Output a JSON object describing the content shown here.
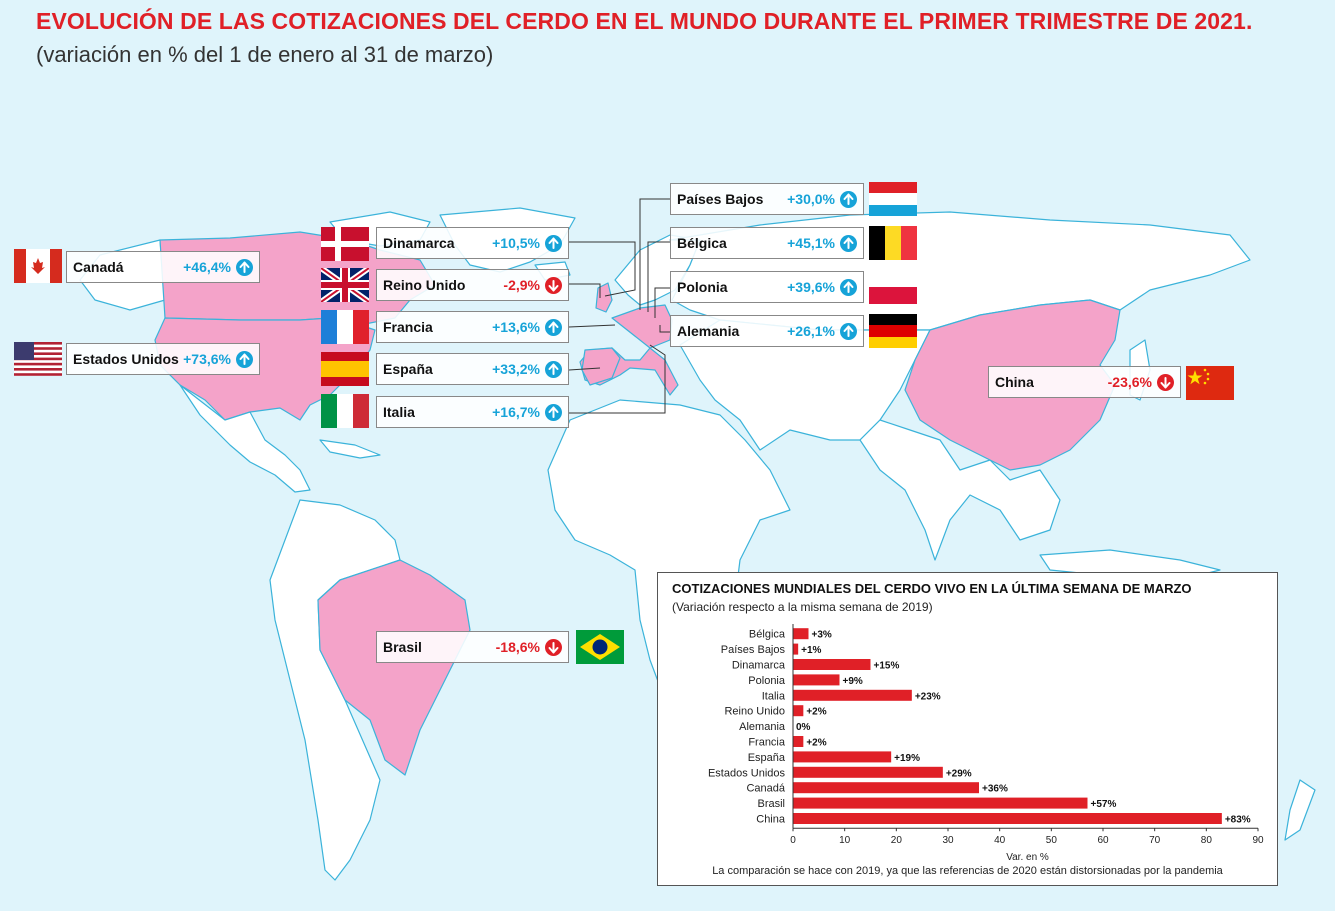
{
  "title": "EVOLUCIÓN DE LAS COTIZACIONES DEL CERDO EN EL MUNDO DURANTE EL PRIMER TRIMESTRE DE 2021.",
  "subtitle": "(variación en % del  1 de enero al 31 de marzo)",
  "colors": {
    "up": "#16a3d8",
    "down": "#e02027",
    "highlight": "#f4a3c9",
    "land": "#ffffff",
    "sea": "#dff4fb",
    "bar": "#e02027"
  },
  "labels": {
    "canada": {
      "name": "Canadá",
      "value": "+46,4%",
      "trend": "up"
    },
    "usa": {
      "name": "Estados Unidos",
      "value": "+73,6%",
      "trend": "up"
    },
    "dinamarca": {
      "name": "Dinamarca",
      "value": "+10,5%",
      "trend": "up"
    },
    "reino_unido": {
      "name": "Reino Unido",
      "value": "-2,9%",
      "trend": "down"
    },
    "francia": {
      "name": "Francia",
      "value": "+13,6%",
      "trend": "up"
    },
    "espana": {
      "name": "España",
      "value": "+33,2%",
      "trend": "up"
    },
    "italia": {
      "name": "Italia",
      "value": "+16,7%",
      "trend": "up"
    },
    "paises_bajos": {
      "name": "Países Bajos",
      "value": "+30,0%",
      "trend": "up"
    },
    "belgica": {
      "name": "Bélgica",
      "value": "+45,1%",
      "trend": "up"
    },
    "polonia": {
      "name": "Polonia",
      "value": "+39,6%",
      "trend": "up"
    },
    "alemania": {
      "name": "Alemania",
      "value": "+26,1%",
      "trend": "up"
    },
    "china": {
      "name": "China",
      "value": "-23,6%",
      "trend": "down"
    },
    "brasil": {
      "name": "Brasil",
      "value": "-18,6%",
      "trend": "down"
    }
  },
  "chart_data": {
    "type": "bar",
    "orientation": "horizontal",
    "title": "COTIZACIONES MUNDIALES DEL CERDO VIVO EN LA ÚLTIMA SEMANA DE MARZO",
    "subtitle": "(Variación respecto a la misma semana de 2019)",
    "categories": [
      "Bélgica",
      "Países Bajos",
      "Dinamarca",
      "Polonia",
      "Italia",
      "Reino Unido",
      "Alemania",
      "Francia",
      "España",
      "Estados Unidos",
      "Canadá",
      "Brasil",
      "China"
    ],
    "values": [
      3,
      1,
      15,
      9,
      23,
      2,
      0,
      2,
      19,
      29,
      36,
      57,
      83
    ],
    "data_labels": [
      "+3%",
      "+1%",
      "+15%",
      "+9%",
      "+23%",
      "+2%",
      "0%",
      "+2%",
      "+19%",
      "+29%",
      "+36%",
      "+57%",
      "+83%"
    ],
    "xlabel": "Var. en %",
    "xlim": [
      0,
      90
    ],
    "xticks": [
      "0",
      "10",
      "20",
      "30",
      "40",
      "50",
      "60",
      "70",
      "80",
      "90"
    ],
    "note": "La comparación se hace con 2019, ya que las referencias de 2020 están distorsionadas por la pandemia",
    "grid": false
  }
}
